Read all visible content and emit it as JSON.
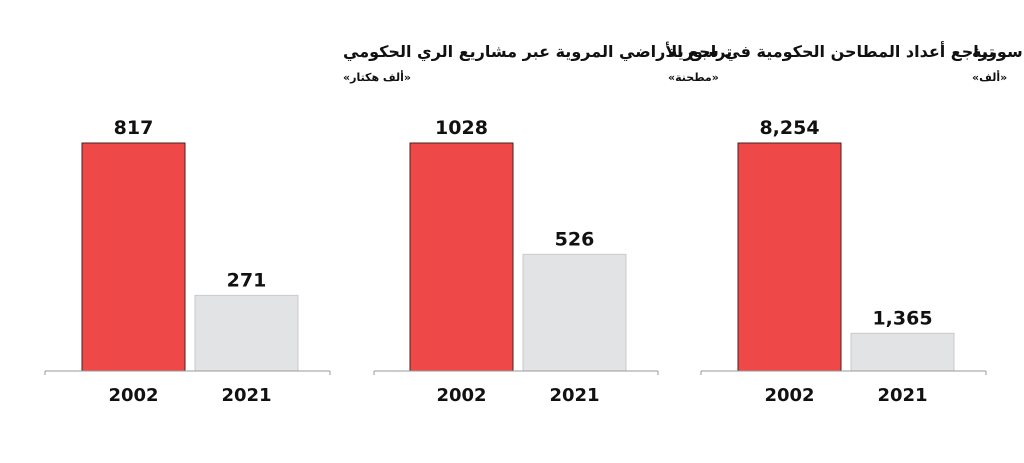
{
  "chart_data": [
    {
      "type": "bar",
      "title": "تراجع الأراضي المروية عبر مشاريع الري الحكومي",
      "subtitle": "«ألف هكتار»",
      "categories": [
        "2002",
        "2021"
      ],
      "values": [
        817,
        271
      ],
      "value_labels": [
        "817",
        "271"
      ],
      "ylim": [
        0,
        817
      ],
      "colors": [
        "#ef4848",
        "#e2e3e5"
      ],
      "grid": false,
      "legend": "none"
    },
    {
      "type": "bar",
      "title": "تراجع أعداد المطاحن الحكومية في سورية",
      "subtitle": "«مطحنة»",
      "categories": [
        "2002",
        "2021"
      ],
      "values": [
        1028,
        526
      ],
      "value_labels": [
        "1028",
        "526"
      ],
      "ylim": [
        0,
        1028
      ],
      "colors": [
        "#ef4848",
        "#e2e3e5"
      ],
      "grid": false,
      "legend": "none"
    },
    {
      "type": "bar",
      "title": "تراجع إنتاج صيصان الفروج في سورية",
      "subtitle": "«ألف»",
      "categories": [
        "2002",
        "2021"
      ],
      "values": [
        8254,
        1365
      ],
      "value_labels": [
        "8,254",
        "1,365"
      ],
      "ylim": [
        0,
        8254
      ],
      "colors": [
        "#ef4848",
        "#e2e3e5"
      ],
      "grid": false,
      "legend": "none"
    }
  ]
}
